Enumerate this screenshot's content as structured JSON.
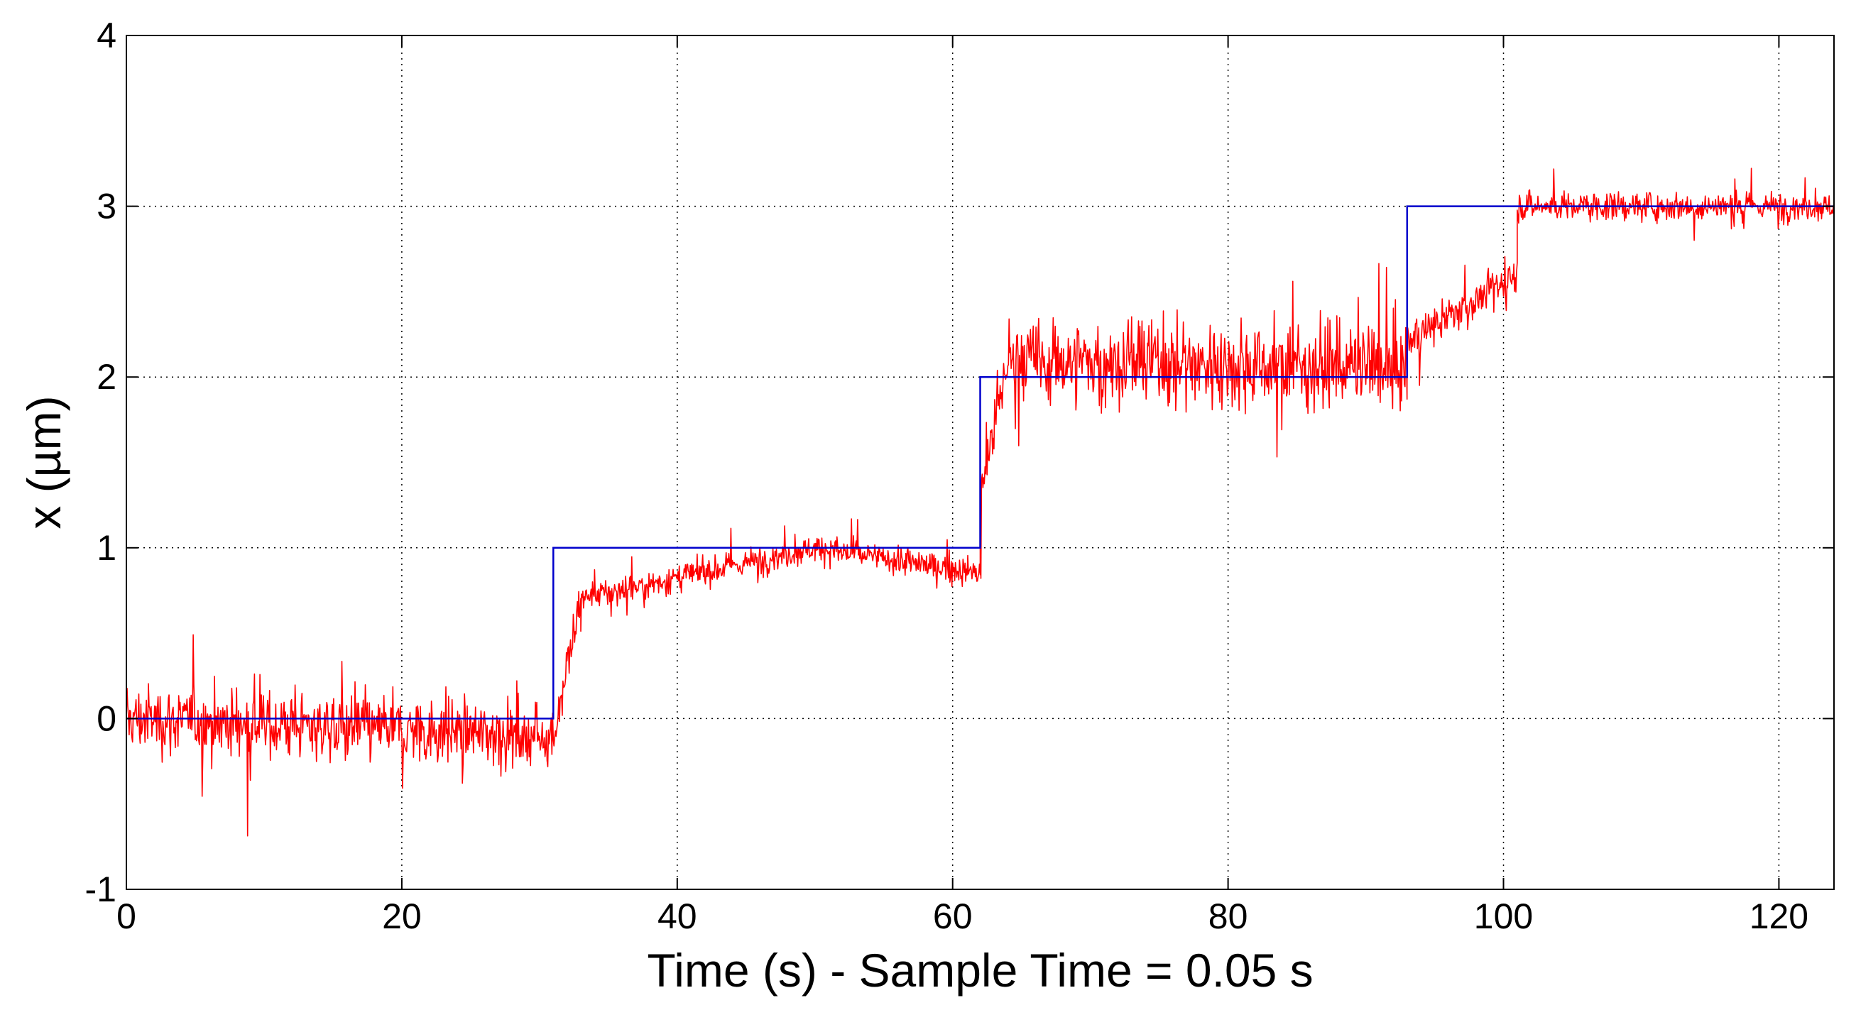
{
  "chart_data": {
    "type": "line",
    "title": "",
    "xlabel": "Time (s) - Sample Time = 0.05 s",
    "ylabel": "x (µm)",
    "xlim": [
      0,
      124
    ],
    "ylim": [
      -1,
      4
    ],
    "grid": true,
    "x_ticks": [
      0,
      20,
      40,
      60,
      80,
      100,
      120
    ],
    "y_ticks": [
      -1,
      0,
      1,
      2,
      3,
      4
    ],
    "x_tick_labels": [
      "0",
      "20",
      "40",
      "60",
      "80",
      "100",
      "120"
    ],
    "y_tick_labels": [
      "-1",
      "0",
      "1",
      "2",
      "3",
      "4"
    ],
    "colors": {
      "setpoint": "#0000cc",
      "measured": "#ff0000"
    },
    "series": [
      {
        "role": "setpoint",
        "color": "#0000cc",
        "x": [
          0,
          31,
          31,
          62,
          62,
          93,
          93,
          124
        ],
        "y": [
          0,
          0,
          1,
          1,
          2,
          2,
          3,
          3
        ]
      },
      {
        "role": "measured",
        "color": "#ff0000",
        "sample_time": 0.05,
        "noisy": true,
        "segments": [
          {
            "x_start": 0,
            "x_end": 31,
            "mean_start": 0.0,
            "mean_end": -0.1,
            "amplitude": 0.35
          },
          {
            "x_start": 31,
            "x_end": 33,
            "mean_start": -0.1,
            "mean_end": 0.7,
            "amplitude": 0.3
          },
          {
            "x_start": 33,
            "x_end": 50,
            "mean_start": 0.7,
            "mean_end": 1.0,
            "amplitude": 0.15
          },
          {
            "x_start": 50,
            "x_end": 62,
            "mean_start": 1.0,
            "mean_end": 0.85,
            "amplitude": 0.15
          },
          {
            "x_start": 62,
            "x_end": 64,
            "mean_start": 1.3,
            "mean_end": 2.1,
            "amplitude": 0.3
          },
          {
            "x_start": 64,
            "x_end": 93,
            "mean_start": 2.1,
            "mean_end": 2.05,
            "amplitude": 0.45
          },
          {
            "x_start": 93,
            "x_end": 101,
            "mean_start": 2.2,
            "mean_end": 2.6,
            "amplitude": 0.2
          },
          {
            "x_start": 101,
            "x_end": 124,
            "mean_start": 3.0,
            "mean_end": 3.0,
            "amplitude": 0.15
          }
        ]
      }
    ]
  }
}
